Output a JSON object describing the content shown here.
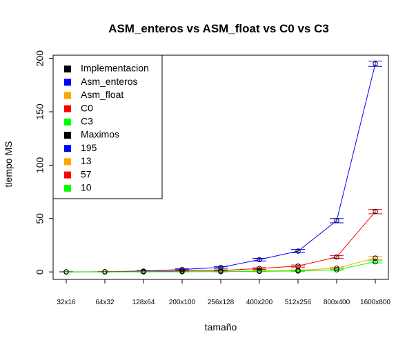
{
  "chart_data": {
    "type": "line",
    "title": "ASM_enteros vs ASM_float vs C0 vs C3",
    "xlabel": "tamaño",
    "ylabel": "tiempo MS",
    "categories": [
      "32x16",
      "64x32",
      "128x64",
      "200x100",
      "256x128",
      "400x200",
      "512x256",
      "800x400",
      "1600x800"
    ],
    "yticks": [
      0,
      50,
      100,
      150,
      200
    ],
    "ylim": [
      -7,
      203
    ],
    "grid": false,
    "legend_position": "top-left",
    "series": [
      {
        "name": "Asm_enteros",
        "color": "#0000ff",
        "values": [
          0.05,
          0.2,
          0.8,
          2.3,
          4.2,
          11.5,
          19.5,
          48,
          195
        ],
        "error": [
          0.2,
          0.2,
          0.4,
          0.6,
          0.8,
          1.2,
          1.5,
          2.0,
          2.5
        ]
      },
      {
        "name": "Asm_float",
        "color": "#ffa500",
        "values": [
          0.02,
          0.04,
          0.12,
          0.25,
          0.4,
          1.0,
          1.5,
          3.5,
          13
        ],
        "error": [
          0.1,
          0.1,
          0.1,
          0.2,
          0.2,
          0.4,
          0.5,
          0.8,
          1.5
        ]
      },
      {
        "name": "C0",
        "color": "#ff0000",
        "values": [
          0.05,
          0.15,
          0.4,
          0.9,
          1.4,
          3.2,
          5.5,
          14,
          56.5
        ],
        "error": [
          0.2,
          0.2,
          0.3,
          0.4,
          0.5,
          0.8,
          1.0,
          1.2,
          2.0
        ]
      },
      {
        "name": "C3",
        "color": "#00ff00",
        "values": [
          0.01,
          0.03,
          0.08,
          0.15,
          0.25,
          0.5,
          0.8,
          2.0,
          9.5
        ],
        "error": [
          0.1,
          0.1,
          0.1,
          0.1,
          0.2,
          0.3,
          0.3,
          0.5,
          1.0
        ]
      }
    ],
    "legend": [
      {
        "label": "Implementacion",
        "color": "#000000"
      },
      {
        "label": "Asm_enteros",
        "color": "#0000ff"
      },
      {
        "label": "Asm_float",
        "color": "#ffa500"
      },
      {
        "label": "C0",
        "color": "#ff0000"
      },
      {
        "label": "C3",
        "color": "#00ff00"
      },
      {
        "label": "Maximos",
        "color": "#000000"
      },
      {
        "label": "195",
        "color": "#0000ff"
      },
      {
        "label": "13",
        "color": "#ffa500"
      },
      {
        "label": "57",
        "color": "#ff0000"
      },
      {
        "label": "10",
        "color": "#00ff00"
      }
    ]
  }
}
